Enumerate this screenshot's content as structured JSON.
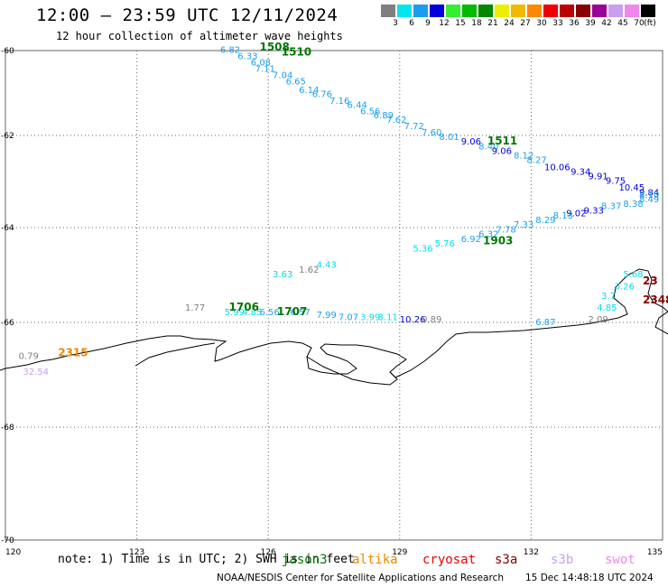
{
  "header": {
    "title": "12:00 — 23:59 UTC 12/11/2024",
    "subtitle": "12 hour collection of altimeter wave heights"
  },
  "legend": {
    "unit": "(ft)",
    "items": [
      {
        "label": "3",
        "color": "#7f7f7f"
      },
      {
        "label": "6",
        "color": "#00e5ee"
      },
      {
        "label": "9",
        "color": "#1c9cee"
      },
      {
        "label": "12",
        "color": "#0000dd"
      },
      {
        "label": "15",
        "color": "#33ee33"
      },
      {
        "label": "18",
        "color": "#00bb00"
      },
      {
        "label": "21",
        "color": "#008800"
      },
      {
        "label": "24",
        "color": "#eeee00"
      },
      {
        "label": "27",
        "color": "#eebb00"
      },
      {
        "label": "30",
        "color": "#ff8800"
      },
      {
        "label": "33",
        "color": "#ee0000"
      },
      {
        "label": "36",
        "color": "#bb0000"
      },
      {
        "label": "39",
        "color": "#880000"
      },
      {
        "label": "42",
        "color": "#990099"
      },
      {
        "label": "45",
        "color": "#c8a0ee"
      },
      {
        "label": "70",
        "color": "#ee88ee"
      },
      {
        "label": "",
        "color": "#000000"
      }
    ]
  },
  "axes": {
    "lat_ticks": [
      "-60",
      "-62",
      "-64",
      "-66",
      "-68",
      "-70"
    ],
    "lon_ticks": [
      "120",
      "123",
      "126",
      "129",
      "132",
      "135"
    ]
  },
  "observations": [
    {
      "v": "6.82",
      "c": "#1aa0ee",
      "lon": 124.9,
      "lat": -60.05
    },
    {
      "v": "6.33",
      "c": "#1aa0ee",
      "lon": 125.3,
      "lat": -60.2
    },
    {
      "v": "6.08",
      "c": "#1aa0ee",
      "lon": 125.6,
      "lat": -60.35
    },
    {
      "v": "7.11",
      "c": "#1aa0ee",
      "lon": 125.7,
      "lat": -60.5
    },
    {
      "v": "7.04",
      "c": "#1aa0ee",
      "lon": 126.1,
      "lat": -60.65
    },
    {
      "v": "6.65",
      "c": "#1aa0ee",
      "lon": 126.4,
      "lat": -60.8
    },
    {
      "v": "6.14",
      "c": "#1aa0ee",
      "lon": 126.7,
      "lat": -61.0
    },
    {
      "v": "6.76",
      "c": "#1aa0ee",
      "lon": 127.0,
      "lat": -61.1
    },
    {
      "v": "7.16",
      "c": "#1aa0ee",
      "lon": 127.4,
      "lat": -61.25
    },
    {
      "v": "6.44",
      "c": "#1aa0ee",
      "lon": 127.8,
      "lat": -61.35
    },
    {
      "v": "6.56",
      "c": "#1aa0ee",
      "lon": 128.1,
      "lat": -61.5
    },
    {
      "v": "6.89",
      "c": "#1aa0ee",
      "lon": 128.4,
      "lat": -61.6
    },
    {
      "v": "7.62",
      "c": "#1aa0ee",
      "lon": 128.7,
      "lat": -61.7
    },
    {
      "v": "7.72",
      "c": "#1aa0ee",
      "lon": 129.1,
      "lat": -61.85
    },
    {
      "v": "7.60",
      "c": "#1aa0ee",
      "lon": 129.5,
      "lat": -62.0
    },
    {
      "v": "8.01",
      "c": "#1aa0ee",
      "lon": 129.9,
      "lat": -62.1
    },
    {
      "v": "9.06",
      "c": "#0000dd",
      "lon": 130.4,
      "lat": -62.2
    },
    {
      "v": "8.40",
      "c": "#1aa0ee",
      "lon": 130.8,
      "lat": -62.3
    },
    {
      "v": "9.06",
      "c": "#0000dd",
      "lon": 131.1,
      "lat": -62.4
    },
    {
      "v": "8.12",
      "c": "#1aa0ee",
      "lon": 131.6,
      "lat": -62.5
    },
    {
      "v": "8.27",
      "c": "#1aa0ee",
      "lon": 131.9,
      "lat": -62.6
    },
    {
      "v": "10.06",
      "c": "#0000dd",
      "lon": 132.3,
      "lat": -62.75
    },
    {
      "v": "9.34",
      "c": "#0000dd",
      "lon": 132.9,
      "lat": -62.85
    },
    {
      "v": "9.91",
      "c": "#0000dd",
      "lon": 133.3,
      "lat": -62.95
    },
    {
      "v": "9.75",
      "c": "#0000dd",
      "lon": 133.7,
      "lat": -63.05
    },
    {
      "v": "10.45",
      "c": "#0000dd",
      "lon": 134.0,
      "lat": -63.2
    },
    {
      "v": "9.84",
      "c": "#0000dd",
      "lon": 134.5,
      "lat": -63.3
    },
    {
      "v": "8.49",
      "c": "#1aa0ee",
      "lon": 134.8,
      "lat": -63.45
    },
    {
      "v": "8.10",
      "c": "#1aa0ee",
      "lon": 135.0,
      "lat": -63.35
    },
    {
      "v": "8.38",
      "c": "#1aa0ee",
      "lon": 134.1,
      "lat": -63.55
    },
    {
      "v": "8.37",
      "c": "#1aa0ee",
      "lon": 133.6,
      "lat": -63.6
    },
    {
      "v": "9.33",
      "c": "#0000dd",
      "lon": 133.2,
      "lat": -63.7
    },
    {
      "v": "9.02",
      "c": "#0000dd",
      "lon": 132.8,
      "lat": -63.75
    },
    {
      "v": "8.13",
      "c": "#1aa0ee",
      "lon": 132.5,
      "lat": -63.8
    },
    {
      "v": "8.29",
      "c": "#1aa0ee",
      "lon": 132.1,
      "lat": -63.9
    },
    {
      "v": "7.33",
      "c": "#1aa0ee",
      "lon": 131.6,
      "lat": -64.0
    },
    {
      "v": "7.78",
      "c": "#1aa0ee",
      "lon": 131.2,
      "lat": -64.1
    },
    {
      "v": "6.32",
      "c": "#1aa0ee",
      "lon": 130.8,
      "lat": -64.2
    },
    {
      "v": "6.92",
      "c": "#1aa0ee",
      "lon": 130.4,
      "lat": -64.3
    },
    {
      "v": "5.76",
      "c": "#00ddee",
      "lon": 129.8,
      "lat": -64.4
    },
    {
      "v": "5.36",
      "c": "#00ddee",
      "lon": 129.3,
      "lat": -64.5
    },
    {
      "v": "4.43",
      "c": "#00ddee",
      "lon": 127.1,
      "lat": -64.85
    },
    {
      "v": "1.62",
      "c": "#7f7f7f",
      "lon": 126.7,
      "lat": -64.95
    },
    {
      "v": "3.63",
      "c": "#00ddee",
      "lon": 126.1,
      "lat": -65.05
    },
    {
      "v": "1.77",
      "c": "#7f7f7f",
      "lon": 124.1,
      "lat": -65.75
    },
    {
      "v": "5.99",
      "c": "#00ddee",
      "lon": 125.0,
      "lat": -65.85
    },
    {
      "v": "4.85",
      "c": "#00ddee",
      "lon": 125.4,
      "lat": -65.85
    },
    {
      "v": "6.56",
      "c": "#1aa0ee",
      "lon": 125.8,
      "lat": -65.85
    },
    {
      "v": "6.57",
      "c": "#1aa0ee",
      "lon": 126.5,
      "lat": -65.85
    },
    {
      "v": "7.99",
      "c": "#1aa0ee",
      "lon": 127.1,
      "lat": -65.9
    },
    {
      "v": "7.07",
      "c": "#1aa0ee",
      "lon": 127.6,
      "lat": -65.95
    },
    {
      "v": "3.99",
      "c": "#00ddee",
      "lon": 128.1,
      "lat": -65.95
    },
    {
      "v": "3.11",
      "c": "#00ddee",
      "lon": 128.5,
      "lat": -65.95
    },
    {
      "v": "10.26",
      "c": "#0000dd",
      "lon": 129.0,
      "lat": -66.0
    },
    {
      "v": "0.89",
      "c": "#7f7f7f",
      "lon": 129.5,
      "lat": -66.0
    },
    {
      "v": "6.87",
      "c": "#1aa0ee",
      "lon": 132.1,
      "lat": -66.05
    },
    {
      "v": "2.09",
      "c": "#7f7f7f",
      "lon": 133.3,
      "lat": -66.0
    },
    {
      "v": "4.85",
      "c": "#00ddee",
      "lon": 133.5,
      "lat": -65.75
    },
    {
      "v": "3.7",
      "c": "#00ddee",
      "lon": 133.6,
      "lat": -65.5
    },
    {
      "v": "3.26",
      "c": "#00ddee",
      "lon": 133.9,
      "lat": -65.3
    },
    {
      "v": "5.68",
      "c": "#00ddee",
      "lon": 134.1,
      "lat": -65.05
    },
    {
      "v": "0.79",
      "c": "#7f7f7f",
      "lon": 120.3,
      "lat": -66.7
    },
    {
      "v": "32.54",
      "c": "#c8a0ee",
      "lon": 120.4,
      "lat": -67.0
    }
  ],
  "time_labels": [
    {
      "v": "1508",
      "c": "#007700",
      "lon": 125.8,
      "lat": -60.0
    },
    {
      "v": "1510",
      "c": "#007700",
      "lon": 126.3,
      "lat": -60.12
    },
    {
      "v": "1511",
      "c": "#007700",
      "lon": 131.0,
      "lat": -62.2
    },
    {
      "v": "1903",
      "c": "#007700",
      "lon": 130.9,
      "lat": -64.35
    },
    {
      "v": "1706",
      "c": "#007700",
      "lon": 125.1,
      "lat": -65.75
    },
    {
      "v": "1707",
      "c": "#007700",
      "lon": 126.2,
      "lat": -65.85
    },
    {
      "v": "2315",
      "c": "#ee8800",
      "lon": 121.2,
      "lat": -66.65
    },
    {
      "v": "2348",
      "c": "#880000",
      "lon": 134.7,
      "lat": -65.6
    },
    {
      "v": "23",
      "c": "#880000",
      "lon": 135.0,
      "lat": -65.2
    }
  ],
  "footer": {
    "note": "note: 1) Time is in UTC; 2) SWH is in feet",
    "satellites": [
      {
        "name": "jason3",
        "color": "#007700"
      },
      {
        "name": "altika",
        "color": "#ee8800"
      },
      {
        "name": "cryosat",
        "color": "#ee0000"
      },
      {
        "name": "s3a",
        "color": "#880000"
      },
      {
        "name": "s3b",
        "color": "#c8a0ee"
      },
      {
        "name": "swot",
        "color": "#ee88ee"
      }
    ],
    "credit": "NOAA/NESDIS Center for Satellite Applications and Research",
    "timestamp": "15 Dec 14:48:18 UTC 2024"
  }
}
